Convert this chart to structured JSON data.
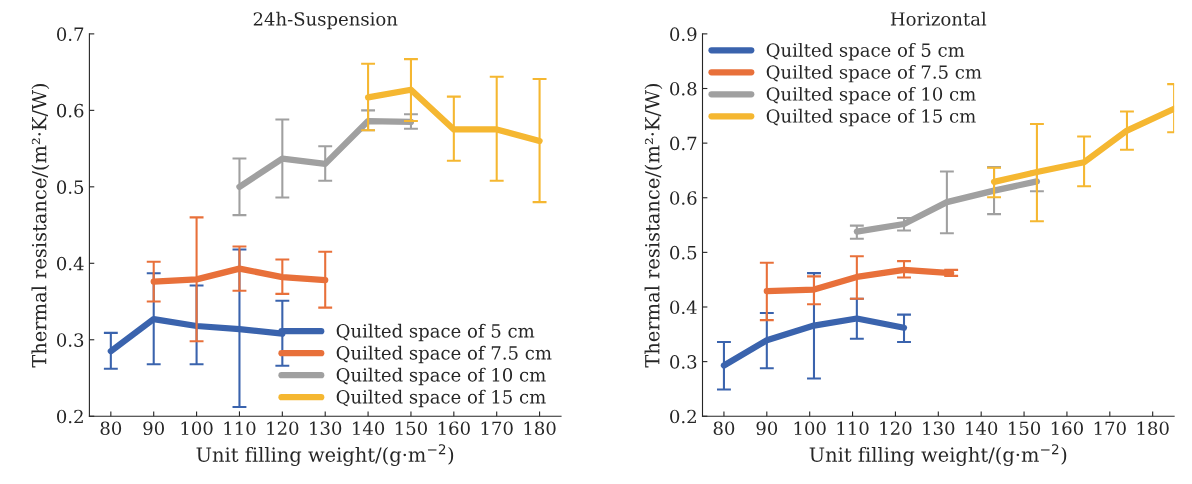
{
  "chart_data": [
    {
      "type": "line",
      "title": "24h-Suspension",
      "xlabel": "Unit filling weight/(g·m$^{−2}$)",
      "ylabel": "Thermal resistance/(m²·K/W)",
      "xlim": [
        75,
        185
      ],
      "xticks": [
        80,
        90,
        100,
        110,
        120,
        130,
        140,
        150,
        160,
        170,
        180
      ],
      "ylim": [
        0.2,
        0.7
      ],
      "yticks": [
        0.2,
        0.3,
        0.4,
        0.5,
        0.6,
        0.7
      ],
      "legend": "bottom right",
      "grid": false,
      "line_style": "solid",
      "series": [
        {
          "name": "Quilted space of 5 cm",
          "color": "#3a63ad",
          "x": [
            80,
            90,
            100,
            110,
            120
          ],
          "values": [
            0.285,
            0.327,
            0.318,
            0.314,
            0.308
          ],
          "errors": [
            [
              0.262,
              0.309
            ],
            [
              0.268,
              0.387
            ],
            [
              0.268,
              0.371
            ],
            [
              0.212,
              0.418
            ],
            [
              0.266,
              0.351
            ]
          ]
        },
        {
          "name": "Quilted space of 7.5 cm",
          "color": "#e8703a",
          "x": [
            90,
            100,
            110,
            120,
            130
          ],
          "values": [
            0.376,
            0.379,
            0.393,
            0.382,
            0.378
          ],
          "errors": [
            [
              0.35,
              0.402
            ],
            [
              0.298,
              0.46
            ],
            [
              0.364,
              0.422
            ],
            [
              0.36,
              0.405
            ],
            [
              0.342,
              0.415
            ]
          ]
        },
        {
          "name": "Quilted space of 10 cm",
          "color": "#a0a0a0",
          "x": [
            110,
            120,
            130,
            140,
            150
          ],
          "values": [
            0.5,
            0.537,
            0.53,
            0.586,
            0.585
          ],
          "errors": [
            [
              0.463,
              0.537
            ],
            [
              0.486,
              0.588
            ],
            [
              0.508,
              0.553
            ],
            [
              0.574,
              0.6
            ],
            [
              0.576,
              0.595
            ]
          ]
        },
        {
          "name": "Quilted space of 15 cm",
          "color": "#f5b731",
          "x": [
            140,
            150,
            160,
            170,
            180
          ],
          "values": [
            0.617,
            0.627,
            0.575,
            0.575,
            0.56
          ],
          "errors": [
            [
              0.574,
              0.661
            ],
            [
              0.586,
              0.667
            ],
            [
              0.534,
              0.618
            ],
            [
              0.508,
              0.644
            ],
            [
              0.48,
              0.641
            ]
          ]
        }
      ]
    },
    {
      "type": "line",
      "title": "Horizontal",
      "xlabel": "Unit filling weight/(g·m$^{−2}$)",
      "ylabel": "Thermal resistance/(m²·K/W)",
      "xlim": [
        75,
        185
      ],
      "xticks": [
        80,
        90,
        100,
        110,
        120,
        130,
        140,
        150,
        160,
        170,
        180
      ],
      "ylim": [
        0.2,
        0.9
      ],
      "yticks": [
        0.2,
        0.3,
        0.4,
        0.5,
        0.6,
        0.7,
        0.8,
        0.9
      ],
      "legend": "top left",
      "grid": false,
      "line_style": "solid",
      "series": [
        {
          "name": "Quilted space of 5 cm",
          "color": "#3a63ad",
          "x": [
            80,
            90,
            101,
            111,
            122
          ],
          "values": [
            0.293,
            0.339,
            0.366,
            0.379,
            0.362
          ],
          "errors": [
            [
              0.249,
              0.336
            ],
            [
              0.288,
              0.389
            ],
            [
              0.269,
              0.462
            ],
            [
              0.342,
              0.415
            ],
            [
              0.336,
              0.386
            ]
          ]
        },
        {
          "name": "Quilted space of 7.5 cm",
          "color": "#e8703a",
          "x": [
            90,
            101,
            111,
            122,
            133
          ],
          "values": [
            0.429,
            0.432,
            0.455,
            0.468,
            0.462
          ],
          "errors": [
            [
              0.376,
              0.481
            ],
            [
              0.405,
              0.456
            ],
            [
              0.415,
              0.493
            ],
            [
              0.454,
              0.484
            ],
            [
              0.457,
              0.468
            ]
          ]
        },
        {
          "name": "Quilted space of 10 cm",
          "color": "#a0a0a0",
          "x": [
            111,
            122,
            132,
            143,
            153
          ],
          "values": [
            0.538,
            0.552,
            0.592,
            0.613,
            0.63
          ],
          "errors": [
            [
              0.525,
              0.549
            ],
            [
              0.54,
              0.563
            ],
            [
              0.535,
              0.648
            ],
            [
              0.57,
              0.656
            ],
            [
              0.612,
              0.648
            ]
          ]
        },
        {
          "name": "Quilted space of 15 cm",
          "color": "#f5b731",
          "x": [
            143,
            153,
            164,
            174,
            185
          ],
          "values": [
            0.629,
            0.647,
            0.665,
            0.723,
            0.763
          ],
          "errors": [
            [
              0.601,
              0.655
            ],
            [
              0.557,
              0.735
            ],
            [
              0.621,
              0.712
            ],
            [
              0.688,
              0.758
            ],
            [
              0.72,
              0.808
            ]
          ]
        }
      ]
    }
  ]
}
